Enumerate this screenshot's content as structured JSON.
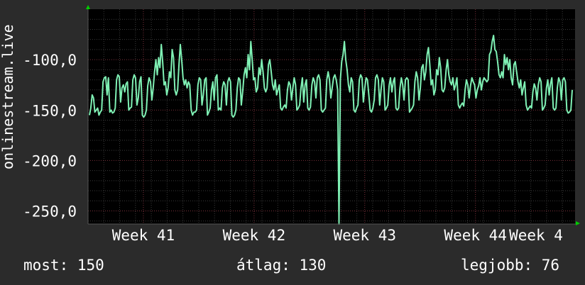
{
  "chart_data": {
    "type": "line",
    "title": "",
    "xlabel": "",
    "ylabel": "onlinestream.live",
    "yticks": [
      -100,
      -150,
      -200,
      -250
    ],
    "ytick_labels": [
      "-100,0",
      "-150,0",
      "-200,0",
      "-250,0"
    ],
    "ylim": [
      -263,
      -50
    ],
    "xlim": [
      0,
      4.4
    ],
    "xticks": [
      0.5,
      1.5,
      2.5,
      3.5,
      4.5
    ],
    "xtick_labels": [
      "Week 41",
      "Week 42",
      "Week 43",
      "Week 44",
      "Week 4"
    ],
    "grid": true,
    "legend": "none",
    "series": [
      {
        "values": [
          -155,
          -148,
          -135,
          -138,
          -152,
          -150,
          -148,
          -155,
          -152,
          -150,
          -122,
          -118,
          -117,
          -135,
          -118,
          -152,
          -150,
          -153,
          -152,
          -148,
          -120,
          -115,
          -117,
          -142,
          -128,
          -125,
          -132,
          -124,
          -122,
          -150,
          -148,
          -147,
          -120,
          -115,
          -118,
          -145,
          -138,
          -122,
          -117,
          -155,
          -157,
          -155,
          -150,
          -126,
          -118,
          -122,
          -140,
          -128,
          -112,
          -100,
          -115,
          -98,
          -108,
          -85,
          -102,
          -125,
          -122,
          -135,
          -128,
          -112,
          -118,
          -90,
          -98,
          -130,
          -135,
          -130,
          -105,
          -85,
          -100,
          -118,
          -125,
          -120,
          -128,
          -122,
          -125,
          -150,
          -155,
          -152,
          -152,
          -150,
          -125,
          -118,
          -120,
          -145,
          -135,
          -120,
          -118,
          -155,
          -152,
          -148,
          -130,
          -122,
          -140,
          -118,
          -115,
          -150,
          -148,
          -150,
          -128,
          -122,
          -125,
          -145,
          -122,
          -118,
          -122,
          -155,
          -157,
          -155,
          -150,
          -128,
          -118,
          -120,
          -145,
          -132,
          -115,
          -108,
          -118,
          -95,
          -110,
          -82,
          -100,
          -120,
          -118,
          -132,
          -128,
          -108,
          -115,
          -100,
          -112,
          -128,
          -132,
          -128,
          -105,
          -100,
          -112,
          -125,
          -130,
          -120,
          -135,
          -130,
          -125,
          -148,
          -150,
          -147,
          -145,
          -148,
          -130,
          -122,
          -125,
          -140,
          -128,
          -118,
          -125,
          -150,
          -148,
          -145,
          -128,
          -118,
          -142,
          -125,
          -120,
          -148,
          -150,
          -147,
          -125,
          -118,
          -122,
          -138,
          -118,
          -115,
          -120,
          -150,
          -152,
          -150,
          -148,
          -120,
          -112,
          -120,
          -138,
          -128,
          -118,
          -115,
          -120,
          -130,
          -263,
          -120,
          -102,
          -95,
          -82,
          -100,
          -110,
          -125,
          -132,
          -118,
          -122,
          -150,
          -152,
          -148,
          -145,
          -120,
          -115,
          -118,
          -142,
          -128,
          -118,
          -120,
          -135,
          -150,
          -152,
          -148,
          -140,
          -118,
          -115,
          -120,
          -145,
          -130,
          -118,
          -122,
          -150,
          -148,
          -145,
          -126,
          -118,
          -132,
          -122,
          -118,
          -148,
          -150,
          -148,
          -128,
          -118,
          -125,
          -140,
          -120,
          -118,
          -120,
          -152,
          -150,
          -148,
          -145,
          -122,
          -112,
          -118,
          -140,
          -128,
          -108,
          -105,
          -120,
          -112,
          -95,
          -88,
          -105,
          -125,
          -120,
          -135,
          -130,
          -110,
          -115,
          -98,
          -108,
          -130,
          -132,
          -128,
          -110,
          -100,
          -115,
          -122,
          -125,
          -118,
          -130,
          -125,
          -118,
          -145,
          -148,
          -145,
          -143,
          -146,
          -130,
          -120,
          -125,
          -138,
          -126,
          -118,
          -122,
          -125,
          -138,
          -130,
          -126,
          -118,
          -130,
          -122,
          -118,
          -120,
          -122,
          -120,
          -95,
          -92,
          -82,
          -76,
          -90,
          -92,
          -102,
          -115,
          -118,
          -112,
          -118,
          -95,
          -105,
          -98,
          -110,
          -100,
          -118,
          -125,
          -105,
          -102,
          -112,
          -122,
          -128,
          -120,
          -135,
          -128,
          -122,
          -145,
          -150,
          -148,
          -146,
          -148,
          -132,
          -124,
          -128,
          -140,
          -125,
          -118,
          -122,
          -150,
          -148,
          -145,
          -128,
          -120,
          -135,
          -124,
          -118,
          -148,
          -150,
          -148,
          -128,
          -118,
          -122,
          -140,
          -120,
          -118,
          -122,
          -150,
          -153,
          -152,
          -150,
          -130
        ]
      }
    ]
  },
  "stats": {
    "now": "most: 150",
    "avg": "átlag: 130",
    "best": "legjobb: 76"
  },
  "colors": {
    "background": "#2b2b2b",
    "plot_background": "#000000",
    "line": "#7ff0b4",
    "grid_major": "#7a2f3a",
    "grid_minor": "#3a3a3a",
    "axis_arrow": "#00cc00"
  }
}
